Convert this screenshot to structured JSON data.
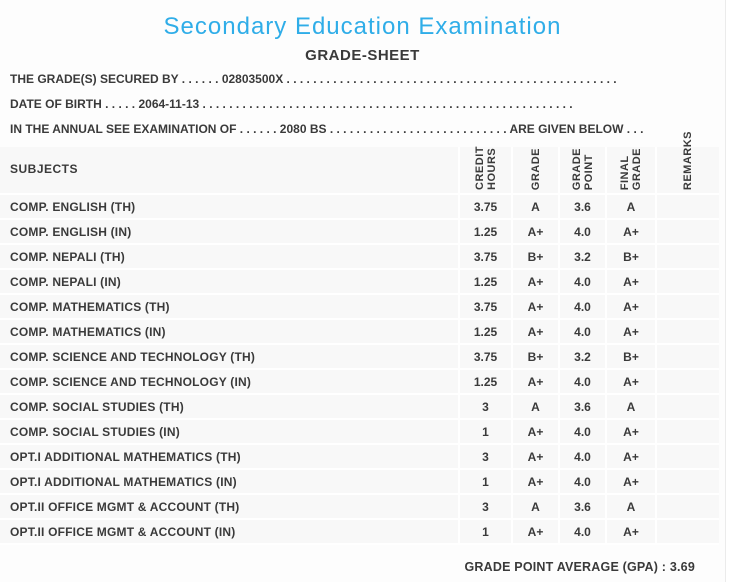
{
  "colors": {
    "accent_blue": "#2fade8",
    "text_dark": "#3a3a3a",
    "row_background": "#f8f8f8",
    "separator_white": "#ffffff",
    "panel_border": "#ebebeb"
  },
  "header": {
    "title": "Secondary Education Examination",
    "subtitle": "GRADE-SHEET"
  },
  "declaration": {
    "line1": {
      "label": "THE GRADE(S) SECURED BY",
      "leader": " . . . . . . ",
      "value": "02803500X",
      "trailer": " . . . . . . . . . . . . . . . . . . . . . . . . . . . . . . . . . . . . . . . . . . . . . . . . . ."
    },
    "line2": {
      "label": "DATE OF BIRTH",
      "leader": " . . . . . ",
      "value": "2064-11-13",
      "trailer": " . . . . . . . . . . . . . . . . . . . . . . . . . . . . . . . . . . . . . . . . . . . . . . . . . . . . . . . ."
    },
    "line3": {
      "label": "IN THE ANNUAL SEE EXAMINATION OF",
      "leader": " . . . . . . ",
      "value": "2080 BS",
      "trailer": " . . . . . . . . . . . . . . . . . . . . . . . . . . . ",
      "suffix": "ARE GIVEN BELOW . . ."
    }
  },
  "table": {
    "subjects_header": "SUBJECTS",
    "columns": [
      {
        "lines": [
          "CREDIT",
          "HOURS"
        ]
      },
      {
        "lines": [
          "GRADE",
          ""
        ]
      },
      {
        "lines": [
          "GRADE",
          "POINT"
        ]
      },
      {
        "lines": [
          "FINAL",
          "GRADE"
        ]
      },
      {
        "lines": [
          "REMARKS",
          ""
        ]
      }
    ],
    "rows": [
      {
        "subject": "COMP. ENGLISH (TH)",
        "credit_hours": "3.75",
        "grade": "A",
        "grade_point": "3.6",
        "final_grade": "A",
        "remarks": ""
      },
      {
        "subject": "COMP. ENGLISH (IN)",
        "credit_hours": "1.25",
        "grade": "A+",
        "grade_point": "4.0",
        "final_grade": "A+",
        "remarks": ""
      },
      {
        "subject": "COMP. NEPALI (TH)",
        "credit_hours": "3.75",
        "grade": "B+",
        "grade_point": "3.2",
        "final_grade": "B+",
        "remarks": ""
      },
      {
        "subject": "COMP. NEPALI (IN)",
        "credit_hours": "1.25",
        "grade": "A+",
        "grade_point": "4.0",
        "final_grade": "A+",
        "remarks": ""
      },
      {
        "subject": "COMP. MATHEMATICS (TH)",
        "credit_hours": "3.75",
        "grade": "A+",
        "grade_point": "4.0",
        "final_grade": "A+",
        "remarks": ""
      },
      {
        "subject": "COMP. MATHEMATICS (IN)",
        "credit_hours": "1.25",
        "grade": "A+",
        "grade_point": "4.0",
        "final_grade": "A+",
        "remarks": ""
      },
      {
        "subject": "COMP. SCIENCE AND TECHNOLOGY (TH)",
        "credit_hours": "3.75",
        "grade": "B+",
        "grade_point": "3.2",
        "final_grade": "B+",
        "remarks": ""
      },
      {
        "subject": "COMP. SCIENCE AND TECHNOLOGY (IN)",
        "credit_hours": "1.25",
        "grade": "A+",
        "grade_point": "4.0",
        "final_grade": "A+",
        "remarks": ""
      },
      {
        "subject": "COMP. SOCIAL STUDIES (TH)",
        "credit_hours": "3",
        "grade": "A",
        "grade_point": "3.6",
        "final_grade": "A",
        "remarks": ""
      },
      {
        "subject": "COMP. SOCIAL STUDIES (IN)",
        "credit_hours": "1",
        "grade": "A+",
        "grade_point": "4.0",
        "final_grade": "A+",
        "remarks": ""
      },
      {
        "subject": "OPT.I ADDITIONAL MATHEMATICS (TH)",
        "credit_hours": "3",
        "grade": "A+",
        "grade_point": "4.0",
        "final_grade": "A+",
        "remarks": ""
      },
      {
        "subject": "OPT.I ADDITIONAL MATHEMATICS (IN)",
        "credit_hours": "1",
        "grade": "A+",
        "grade_point": "4.0",
        "final_grade": "A+",
        "remarks": ""
      },
      {
        "subject": "OPT.II OFFICE MGMT & ACCOUNT (TH)",
        "credit_hours": "3",
        "grade": "A",
        "grade_point": "3.6",
        "final_grade": "A",
        "remarks": ""
      },
      {
        "subject": "OPT.II OFFICE MGMT & ACCOUNT (IN)",
        "credit_hours": "1",
        "grade": "A+",
        "grade_point": "4.0",
        "final_grade": "A+",
        "remarks": ""
      }
    ]
  },
  "footer": {
    "gpa_label": "GRADE POINT AVERAGE (GPA) :",
    "gpa_value": "3.69"
  }
}
